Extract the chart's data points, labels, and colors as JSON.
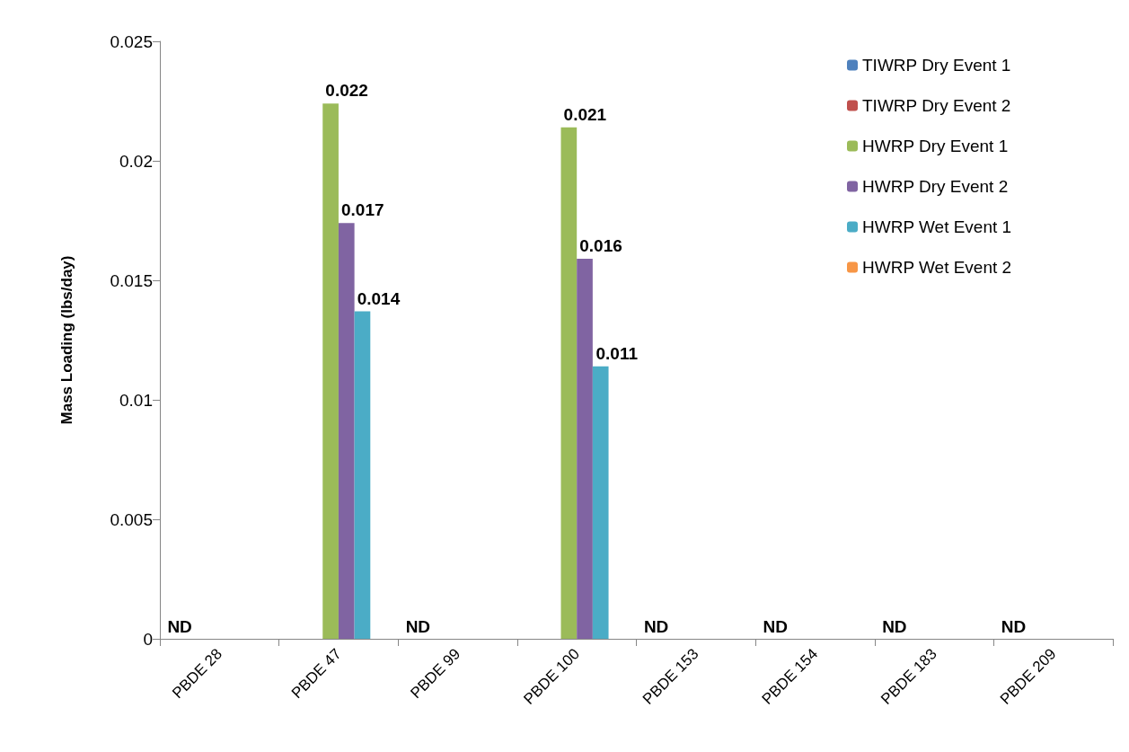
{
  "chart_data": {
    "type": "bar",
    "ylabel": "Mass Loading (lbs/day)",
    "categories": [
      "PBDE 28",
      "PBDE 47",
      "PBDE 99",
      "PBDE 100",
      "PBDE 153",
      "PBDE 154",
      "PBDE 183",
      "PBDE 209"
    ],
    "series": [
      {
        "name": "TIWRP Dry Event 1",
        "color": "#4f81bd",
        "values": [
          null,
          null,
          null,
          null,
          null,
          null,
          null,
          null
        ]
      },
      {
        "name": "TIWRP Dry Event 2",
        "color": "#c0504d",
        "values": [
          null,
          null,
          null,
          null,
          null,
          null,
          null,
          null
        ]
      },
      {
        "name": "HWRP Dry Event 1",
        "color": "#9bbb59",
        "values": [
          null,
          0.0224,
          null,
          0.0214,
          null,
          null,
          null,
          null
        ],
        "value_labels": [
          null,
          "0.022",
          null,
          "0.021",
          null,
          null,
          null,
          null
        ]
      },
      {
        "name": "HWRP Dry Event 2",
        "color": "#8064a2",
        "values": [
          null,
          0.0174,
          null,
          0.0159,
          null,
          null,
          null,
          null
        ],
        "value_labels": [
          null,
          "0.017",
          null,
          "0.016",
          null,
          null,
          null,
          null
        ]
      },
      {
        "name": "HWRP Wet Event 1",
        "color": "#4bacc6",
        "values": [
          null,
          0.0137,
          null,
          0.0114,
          null,
          null,
          null,
          null
        ],
        "value_labels": [
          null,
          "0.014",
          null,
          "0.011",
          null,
          null,
          null,
          null
        ]
      },
      {
        "name": "HWRP Wet Event 2",
        "color": "#f79646",
        "values": [
          null,
          null,
          null,
          null,
          null,
          null,
          null,
          null
        ]
      }
    ],
    "annotations": [
      "ND",
      "ND",
      "ND",
      "ND",
      "ND",
      "ND"
    ],
    "ylim": [
      0,
      0.025
    ],
    "yticks": [
      0,
      0.005,
      0.01,
      0.015,
      0.02,
      0.025
    ],
    "grid": false,
    "legend": "top right"
  }
}
